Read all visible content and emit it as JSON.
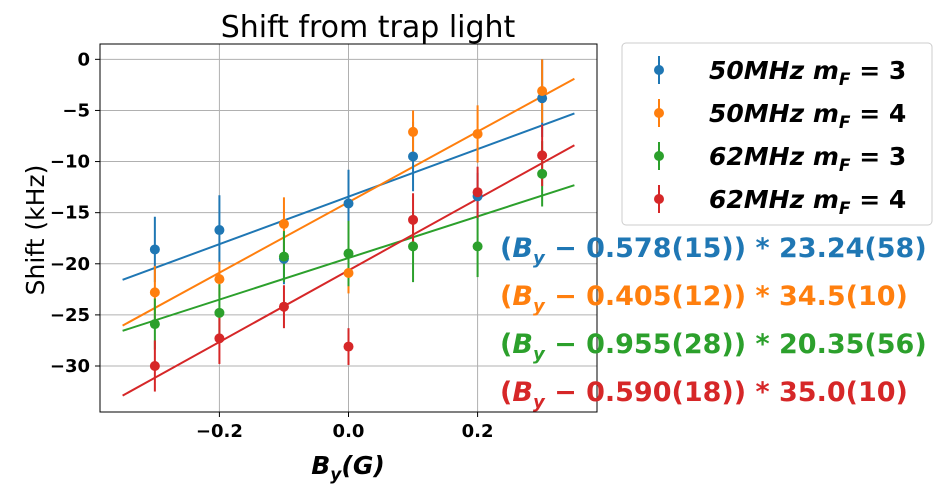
{
  "chart_data": {
    "type": "scatter",
    "title": "Shift from trap light",
    "xlabel": "B_y(G)",
    "ylabel": "Shift (kHz)",
    "xlim": [
      -0.385,
      0.385
    ],
    "ylim": [
      -34.5,
      1.5
    ],
    "xticks": [
      -0.2,
      0.0,
      0.2
    ],
    "xtick_labels": [
      "−0.2",
      "0.0",
      "0.2"
    ],
    "yticks": [
      0,
      -5,
      -10,
      -15,
      -20,
      -25,
      -30
    ],
    "ytick_labels": [
      "0",
      "−5",
      "−10",
      "−15",
      "−20",
      "−25",
      "−30"
    ],
    "grid": true,
    "legend_position": "outside-right-top",
    "fit_range": [
      -0.35,
      0.35
    ],
    "x": [
      -0.3,
      -0.2,
      -0.1,
      0.0,
      0.1,
      0.2,
      0.3
    ],
    "series": [
      {
        "name": "50MHz m_F = 3",
        "color": "#1f77b4",
        "y": [
          -18.6,
          -16.7,
          -19.5,
          -14.1,
          -9.5,
          -13.4,
          -3.8
        ],
        "yerr": [
          3.2,
          3.4,
          2.5,
          3.3,
          3.4,
          2.3,
          3.8
        ],
        "fit": {
          "x0": 0.578,
          "slope": 23.24
        },
        "annotation": {
          "base": "(",
          "var": "B",
          "sub": "y",
          "rest": " − 0.578(15)) * 23.24(58)"
        }
      },
      {
        "name": "50MHz m_F = 4",
        "color": "#ff7f0e",
        "y": [
          -22.8,
          -21.5,
          -16.1,
          -20.9,
          -7.1,
          -7.3,
          -3.1
        ],
        "yerr": [
          2.6,
          1.7,
          2.6,
          2.0,
          2.1,
          2.8,
          3.1
        ],
        "fit": {
          "x0": 0.405,
          "slope": 34.5
        },
        "annotation": {
          "base": "(",
          "var": "B",
          "sub": "y",
          "rest": " − 0.405(12)) * 34.5(10)"
        }
      },
      {
        "name": "62MHz m_F = 3",
        "color": "#2ca02c",
        "y": [
          -25.9,
          -24.8,
          -19.3,
          -19.0,
          -18.3,
          -18.3,
          -11.2
        ],
        "yerr": [
          2.5,
          2.8,
          2.5,
          3.2,
          3.5,
          3.0,
          3.2
        ],
        "fit": {
          "x0": 0.955,
          "slope": 20.35
        },
        "annotation": {
          "base": "(",
          "var": "B",
          "sub": "y",
          "rest": " − 0.955(28)) * 20.35(56)"
        }
      },
      {
        "name": "62MHz m_F = 4",
        "color": "#d62728",
        "y": [
          -30.0,
          -27.3,
          -24.2,
          -28.1,
          -15.7,
          -13.0,
          -9.4
        ],
        "yerr": [
          2.5,
          2.5,
          2.1,
          1.8,
          2.6,
          2.5,
          3.0
        ],
        "fit": {
          "x0": 0.59,
          "slope": 35.0
        },
        "annotation": {
          "base": "(",
          "var": "B",
          "sub": "y",
          "rest": " − 0.590(18)) * 35.0(10)"
        }
      }
    ],
    "legend": [
      {
        "freq": "50MHz",
        "m": "m",
        "sub": "F",
        "eq": " = 3"
      },
      {
        "freq": "50MHz",
        "m": "m",
        "sub": "F",
        "eq": " = 4"
      },
      {
        "freq": "62MHz",
        "m": "m",
        "sub": "F",
        "eq": " = 3"
      },
      {
        "freq": "62MHz",
        "m": "m",
        "sub": "F",
        "eq": " = 4"
      }
    ]
  }
}
